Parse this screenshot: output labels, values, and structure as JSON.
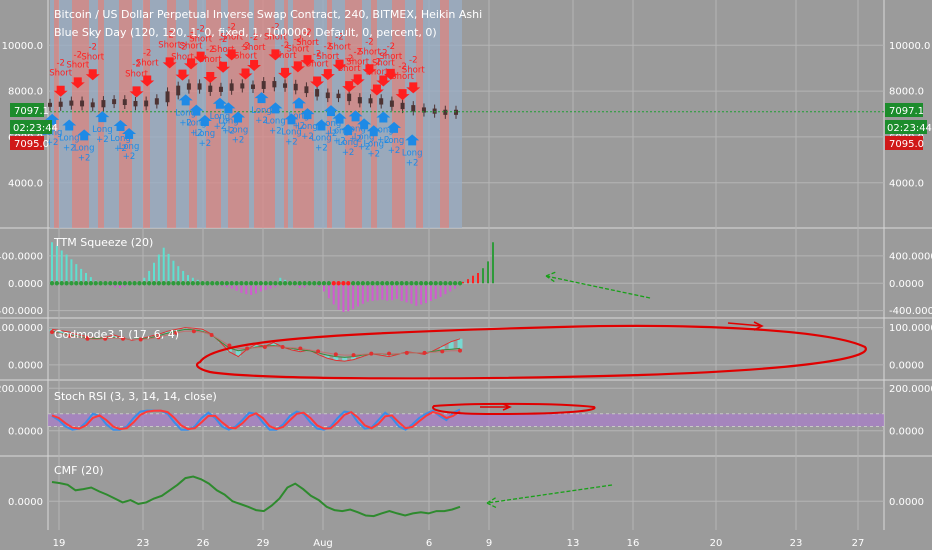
{
  "colors": {
    "background": "#9b9b9b",
    "grid": "#b5b5b5",
    "separator": "#d8d8d8",
    "candle": "#4d3333",
    "short": "#ff1f1f",
    "long": "#1e8ae6",
    "price_line": "#1f9e35",
    "red_band": "#d98a8a",
    "blue_band": "#9aaec6",
    "squeeze_teal": "#5fe0d0",
    "squeeze_magenta": "#d25ad2",
    "squeeze_dot": "#2e9a3a",
    "god_teal": "#74e0d8",
    "god_red": "#e03030",
    "god_green": "#3c8a3c",
    "stoch_blue": "#3a8ee8",
    "stoch_red": "#ff3a3a",
    "stoch_band": "#a87dc8",
    "cmf": "#2e8a2e",
    "annot_red": "#e00000",
    "annot_green": "#18a018",
    "badge_green": "#1c8c2c",
    "badge_red": "#d01818"
  },
  "chart_data": [
    {
      "type": "candlestick",
      "title": "Bitcoin / US Dollar Perpetual Inverse Swap Contract, 240, BITMEX, Heikin Ashi",
      "subtitle": "Blue Sky Day (120, 120, 1, 0, fixed, 1, 100000, Default, 0, percent, 0)",
      "ylim": [
        2200,
        11800
      ],
      "yticks": [
        4000.0,
        6000.0,
        8000.0,
        10000.0
      ],
      "y_tick_labels": [
        "4000.0",
        "6000.0",
        "8000.0",
        "10000.0"
      ],
      "price_label": "7097.1",
      "time_label": "02:23:44",
      "level_label": "7095.0",
      "close_series": [
        7400,
        7450,
        7500,
        7420,
        7380,
        7520,
        7560,
        7480,
        7420,
        7500,
        7600,
        7900,
        8150,
        8250,
        8150,
        8050,
        8100,
        8250,
        8200,
        8180,
        8350,
        8250,
        8230,
        8120,
        8000,
        7850,
        7780,
        7800,
        7650,
        7550,
        7600,
        7500,
        7400,
        7300,
        7200,
        7150,
        7100,
        7050,
        7097
      ],
      "short_label": "Short",
      "long_label": "Long",
      "short_value": "-2",
      "long_value": "+2",
      "short_x": [
        1,
        2.6,
        4,
        8.1,
        9.1,
        11.2,
        12.4,
        13.2,
        14.1,
        15,
        16.2,
        17,
        18.3,
        19.1,
        21.1,
        22,
        23.2,
        24.1,
        25,
        26,
        27.1,
        28,
        28.8,
        29.9,
        30.6,
        31.2,
        31.9,
        33,
        34
      ],
      "long_x": [
        0.2,
        1.8,
        3.2,
        4.9,
        6.6,
        7.4,
        12.7,
        13.7,
        14.5,
        15.9,
        16.7,
        17.6,
        19.8,
        21.1,
        22.6,
        23.3,
        24.1,
        25.4,
        26.3,
        27.1,
        27.9,
        28.6,
        29.4,
        30.3,
        31.2,
        32.2,
        33.9
      ]
    },
    {
      "type": "bar",
      "title": "TTM Squeeze (20)",
      "ylim": [
        -450,
        750
      ],
      "yticks": [
        -400,
        0,
        400
      ],
      "y_tick_labels": [
        "-400.0000",
        "0.0000",
        "400.0000"
      ],
      "values": [
        600,
        550,
        480,
        420,
        350,
        280,
        210,
        150,
        90,
        40,
        10,
        -15,
        -40,
        -60,
        -70,
        -50,
        -30,
        -10,
        20,
        80,
        180,
        300,
        420,
        520,
        430,
        330,
        250,
        180,
        120,
        80,
        50,
        30,
        10,
        -10,
        -30,
        -45,
        -60,
        -80,
        -110,
        -140,
        -160,
        -170,
        -150,
        -120,
        -100,
        -80,
        -60,
        80,
        50,
        20,
        -40,
        -70,
        -60,
        -30,
        -20,
        -50,
        -120,
        -220,
        -310,
        -390,
        -420,
        -410,
        -380,
        -340,
        -300,
        -270,
        -260,
        -250,
        -240,
        -255,
        -250,
        -230,
        -260,
        -280,
        -300,
        -330,
        -310,
        -290,
        -260,
        -230,
        -200,
        -160,
        -120,
        -80,
        -30
      ],
      "post_values": [
        20,
        60,
        110,
        150,
        220,
        320,
        600
      ]
    },
    {
      "type": "line",
      "title": "Godmode3.1 (17, 6, 4)",
      "ylim": [
        -30,
        115
      ],
      "yticks": [
        0,
        100
      ],
      "y_tick_labels": [
        "0.0000",
        "100.0000"
      ],
      "series": [
        {
          "values": [
            95,
            92,
            88,
            80,
            76,
            70,
            74,
            80,
            72,
            66,
            70,
            76,
            82,
            90,
            95,
            100,
            98,
            95,
            82,
            60,
            35,
            22,
            42,
            55,
            50,
            60,
            48,
            40,
            35,
            40,
            28,
            18,
            12,
            10,
            14,
            22,
            30,
            26,
            22,
            28,
            35,
            32,
            28,
            38,
            50,
            62,
            70
          ]
        },
        {
          "values": [
            90,
            85,
            80,
            75,
            72,
            70,
            72,
            74,
            70,
            68,
            70,
            72,
            78,
            85,
            90,
            95,
            94,
            90,
            80,
            62,
            45,
            38,
            42,
            48,
            50,
            52,
            48,
            44,
            40,
            38,
            32,
            26,
            22,
            20,
            22,
            26,
            30,
            30,
            28,
            30,
            32,
            32,
            32,
            36,
            40,
            42,
            44
          ]
        },
        {
          "values": [
            88,
            84,
            78,
            74,
            70,
            68,
            70,
            72,
            70,
            68,
            68,
            70,
            74,
            80,
            86,
            90,
            90,
            88,
            80,
            66,
            52,
            44,
            44,
            46,
            48,
            50,
            48,
            46,
            44,
            40,
            36,
            32,
            28,
            26,
            26,
            28,
            30,
            30,
            30,
            30,
            32,
            32,
            32,
            34,
            36,
            38,
            38
          ]
        }
      ]
    },
    {
      "type": "line",
      "title": "Stoch RSI (3, 3, 14, 14, close)",
      "ylim": [
        -100,
        220
      ],
      "yticks": [
        0,
        200
      ],
      "y_tick_labels": [
        "0.0000",
        "200.0000"
      ],
      "band": [
        20,
        80
      ],
      "series": [
        {
          "values": [
            70,
            50,
            20,
            5,
            10,
            40,
            80,
            70,
            30,
            5,
            5,
            20,
            60,
            90,
            95,
            95,
            95,
            80,
            40,
            5,
            5,
            20,
            60,
            85,
            60,
            20,
            5,
            20,
            50,
            85,
            80,
            40,
            5,
            5,
            30,
            70,
            90,
            80,
            40,
            10,
            5,
            20,
            60,
            90,
            85,
            40,
            10,
            15,
            50,
            85,
            60,
            20,
            5,
            30,
            60,
            80,
            95,
            70,
            50,
            85,
            100
          ]
        },
        {
          "values": [
            72,
            60,
            35,
            15,
            10,
            25,
            60,
            72,
            50,
            20,
            8,
            12,
            40,
            75,
            90,
            94,
            95,
            88,
            60,
            25,
            8,
            12,
            40,
            70,
            70,
            40,
            15,
            12,
            35,
            68,
            82,
            60,
            22,
            8,
            18,
            50,
            80,
            85,
            60,
            25,
            10,
            12,
            40,
            75,
            88,
            62,
            25,
            12,
            32,
            68,
            72,
            40,
            12,
            18,
            45,
            70,
            88,
            80,
            60,
            70,
            92
          ]
        }
      ]
    },
    {
      "type": "line",
      "title": "CMF (20)",
      "ylim": [
        -0.45,
        0.75
      ],
      "yticks": [
        0
      ],
      "y_tick_labels": [
        "0.0000"
      ],
      "x_tick_labels": [
        "19",
        "23",
        "26",
        "29",
        "Aug",
        "6",
        "9",
        "13",
        "16",
        "20",
        "23",
        "27"
      ],
      "series": [
        {
          "values": [
            0.35,
            0.33,
            0.3,
            0.2,
            0.22,
            0.25,
            0.18,
            0.12,
            0.05,
            -0.02,
            0.02,
            -0.05,
            -0.02,
            0.05,
            0.1,
            0.2,
            0.3,
            0.42,
            0.45,
            0.4,
            0.32,
            0.2,
            0.12,
            0.0,
            -0.05,
            -0.1,
            -0.16,
            -0.18,
            -0.08,
            0.05,
            0.25,
            0.32,
            0.22,
            0.1,
            0.02,
            -0.1,
            -0.16,
            -0.18,
            -0.15,
            -0.2,
            -0.26,
            -0.27,
            -0.22,
            -0.18,
            -0.22,
            -0.26,
            -0.22,
            -0.2,
            -0.22,
            -0.18,
            -0.18,
            -0.15,
            -0.1
          ]
        }
      ]
    }
  ]
}
